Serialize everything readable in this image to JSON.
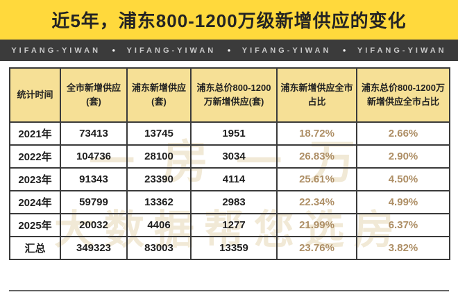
{
  "title": "近5年，浦东800-1200万级新增供应的变化",
  "banner": {
    "items": [
      "YIFANG-YIWAN",
      "YIFANG-YIWAN",
      "YIFANG-YIWAN",
      "YIFANG-YIWAN"
    ],
    "separator": "●"
  },
  "watermark": {
    "line1": "一房一万",
    "line2": "大数据帮您选房"
  },
  "colors": {
    "title_band": "#FFD93C",
    "brand_bar": "#3B3B3B",
    "header_cell": "#F6E096",
    "table_border": "#3A3A3A",
    "value_text": "#1E1E1E",
    "percent_text": "#AE8F66"
  },
  "chart_data": {
    "type": "table",
    "title": "近5年，浦东800-1200万级新增供应的变化",
    "columns": [
      "统计时间",
      "全市新增供应(套)",
      "浦东新增供应(套)",
      "浦东总价800-1200万新增供应(套)",
      "浦东新增供应全市占比",
      "浦东总价800-1200万新增供应全市占比"
    ],
    "rows": [
      [
        "2021年",
        "73413",
        "13745",
        "1951",
        "18.72%",
        "2.66%"
      ],
      [
        "2022年",
        "104736",
        "28100",
        "3034",
        "26.83%",
        "2.90%"
      ],
      [
        "2023年",
        "91343",
        "23390",
        "4114",
        "25.61%",
        "4.50%"
      ],
      [
        "2024年",
        "59799",
        "13362",
        "2983",
        "22.34%",
        "4.99%"
      ],
      [
        "2025年",
        "20032",
        "4406",
        "1277",
        "21.99%",
        "6.37%"
      ],
      [
        "汇总",
        "349323",
        "83003",
        "13359",
        "23.76%",
        "3.82%"
      ]
    ]
  }
}
